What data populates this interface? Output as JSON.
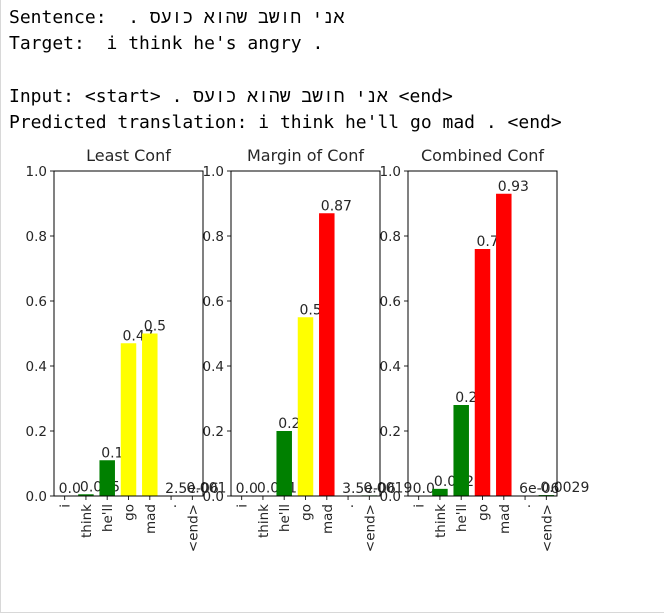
{
  "output": {
    "sentence_label": "Sentence:",
    "sentence": "אני חושב שהוא כועס .",
    "target_label": "Target:",
    "target": "i think he's angry .",
    "input_label": "Input:",
    "input_start": "<start>",
    "input_text": "אני חושב שהוא כועס .",
    "input_end": "<end>",
    "predicted_label": "Predicted translation:",
    "predicted": "i think he'll go mad . <end>"
  },
  "chart_data": [
    {
      "type": "bar",
      "title": "Least Conf",
      "categories": [
        "i",
        "think",
        "he'll",
        "go",
        "mad",
        ".",
        "<end>"
      ],
      "values": [
        0.0,
        0.0053,
        0.11,
        0.47,
        0.5,
        2.5e-06,
        0.001
      ],
      "value_labels": [
        "0.0",
        "0.0053",
        "0.11",
        "0.47",
        "0.5",
        "2.5e-06",
        "0.001"
      ],
      "bar_colors": [
        "#008000",
        "#008000",
        "#008000",
        "#ffff00",
        "#ffff00",
        "#008000",
        "#008000"
      ],
      "ylim": [
        0,
        1.0
      ],
      "yticks": [
        "0.0",
        "0.2",
        "0.4",
        "0.6",
        "0.8",
        "1.0"
      ]
    },
    {
      "type": "bar",
      "title": "Margin of Conf",
      "categories": [
        "i",
        "think",
        "he'll",
        "go",
        "mad",
        ".",
        "<end>"
      ],
      "values": [
        0.0,
        0.0013,
        0.2,
        0.55,
        0.87,
        3.5e-06,
        0.0019
      ],
      "value_labels": [
        "0.0",
        "0.0013",
        "0.2",
        "0.55",
        "0.87",
        "3.5e-06",
        "0.0019"
      ],
      "bar_colors": [
        "#008000",
        "#008000",
        "#008000",
        "#ffff00",
        "#ff0000",
        "#008000",
        "#008000"
      ],
      "ylim": [
        0,
        1.0
      ],
      "yticks": [
        "0.0",
        "0.2",
        "0.4",
        "0.6",
        "0.8",
        "1.0"
      ]
    },
    {
      "type": "bar",
      "title": "Combined Conf",
      "categories": [
        "i",
        "think",
        "he'll",
        "go",
        "mad",
        ".",
        "<end>"
      ],
      "values": [
        0.0,
        0.022,
        0.28,
        0.76,
        0.93,
        6e-06,
        0.0029
      ],
      "value_labels": [
        "0.0",
        "0.022",
        "0.28",
        "0.76",
        "0.93",
        "6e-06",
        "0.0029"
      ],
      "bar_colors": [
        "#008000",
        "#008000",
        "#008000",
        "#ff0000",
        "#ff0000",
        "#008000",
        "#008000"
      ],
      "ylim": [
        0,
        1.0
      ],
      "yticks": [
        "0.0",
        "0.2",
        "0.4",
        "0.6",
        "0.8",
        "1.0"
      ]
    }
  ]
}
